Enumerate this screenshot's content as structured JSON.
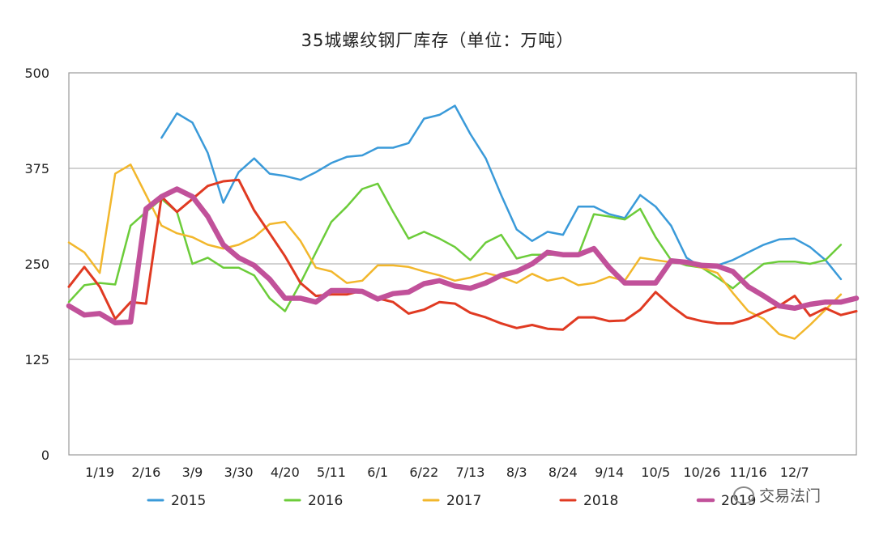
{
  "chart_data": {
    "type": "line",
    "title": "35城螺纹钢厂库存（单位：万吨）",
    "ylim": [
      0,
      500
    ],
    "yticks": [
      0,
      125,
      250,
      375,
      500
    ],
    "x_count": 52,
    "x_tick_labels": [
      {
        "index": 2,
        "label": "1/19"
      },
      {
        "index": 5,
        "label": "2/16"
      },
      {
        "index": 8,
        "label": "3/9"
      },
      {
        "index": 11,
        "label": "3/30"
      },
      {
        "index": 14,
        "label": "4/20"
      },
      {
        "index": 17,
        "label": "5/11"
      },
      {
        "index": 20,
        "label": "6/1"
      },
      {
        "index": 23,
        "label": "6/22"
      },
      {
        "index": 26,
        "label": "7/13"
      },
      {
        "index": 29,
        "label": "8/3"
      },
      {
        "index": 32,
        "label": "8/24"
      },
      {
        "index": 35,
        "label": "9/14"
      },
      {
        "index": 38,
        "label": "10/5"
      },
      {
        "index": 41,
        "label": "10/26"
      },
      {
        "index": 44,
        "label": "11/16"
      },
      {
        "index": 47,
        "label": "12/7"
      }
    ],
    "grid": true,
    "legend_position": "bottom",
    "series": [
      {
        "name": "2015",
        "color": "#3a9ad9",
        "width": 2.5,
        "values": [
          null,
          null,
          null,
          null,
          null,
          null,
          415,
          447,
          435,
          395,
          330,
          370,
          388,
          368,
          365,
          360,
          370,
          382,
          390,
          392,
          402,
          402,
          408,
          440,
          445,
          457,
          420,
          388,
          340,
          295,
          280,
          292,
          288,
          325,
          325,
          315,
          310,
          340,
          325,
          300,
          258,
          245,
          248,
          255,
          265,
          275,
          282,
          283,
          272,
          255,
          230,
          null
        ]
      },
      {
        "name": "2016",
        "color": "#6ccc3a",
        "width": 2.5,
        "values": [
          200,
          222,
          225,
          223,
          300,
          318,
          335,
          318,
          250,
          258,
          245,
          245,
          235,
          205,
          188,
          225,
          265,
          305,
          325,
          348,
          355,
          318,
          283,
          292,
          283,
          272,
          255,
          278,
          288,
          257,
          262,
          262,
          262,
          262,
          315,
          312,
          308,
          322,
          285,
          255,
          248,
          245,
          232,
          218,
          235,
          250,
          253,
          253,
          250,
          255,
          275,
          null
        ]
      },
      {
        "name": "2017",
        "color": "#f2b72c",
        "width": 2.5,
        "values": [
          278,
          265,
          238,
          368,
          380,
          340,
          300,
          290,
          285,
          275,
          270,
          275,
          285,
          302,
          305,
          280,
          245,
          240,
          225,
          228,
          248,
          248,
          246,
          240,
          235,
          228,
          232,
          238,
          233,
          225,
          237,
          228,
          232,
          222,
          225,
          233,
          228,
          258,
          255,
          252,
          250,
          245,
          238,
          212,
          188,
          178,
          158,
          152,
          170,
          190,
          210,
          null
        ]
      },
      {
        "name": "2018",
        "color": "#e03a22",
        "width": 3,
        "values": [
          220,
          246,
          220,
          178,
          200,
          198,
          338,
          318,
          335,
          352,
          358,
          360,
          320,
          290,
          260,
          225,
          208,
          210,
          210,
          215,
          205,
          200,
          185,
          190,
          200,
          198,
          186,
          180,
          172,
          166,
          170,
          165,
          164,
          180,
          180,
          175,
          176,
          190,
          213,
          195,
          180,
          175,
          172,
          172,
          178,
          187,
          195,
          208,
          182,
          192,
          183,
          188
        ]
      },
      {
        "name": "2019",
        "color": "#c1519a",
        "width": 6.5,
        "values": [
          195,
          183,
          185,
          173,
          174,
          322,
          338,
          348,
          338,
          312,
          275,
          258,
          248,
          230,
          205,
          205,
          200,
          215,
          215,
          214,
          204,
          211,
          213,
          224,
          228,
          221,
          218,
          225,
          235,
          240,
          250,
          265,
          262,
          262,
          270,
          245,
          225,
          225,
          225,
          254,
          252,
          248,
          247,
          240,
          220,
          208,
          195,
          192,
          197,
          200,
          200,
          205
        ]
      }
    ]
  },
  "watermark": "交易法门"
}
